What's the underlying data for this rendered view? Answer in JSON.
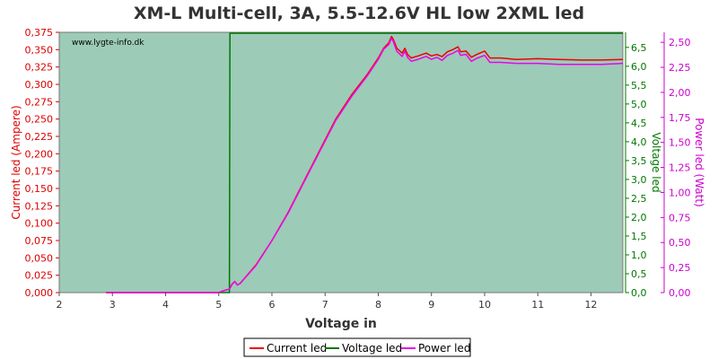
{
  "chart_data": {
    "type": "line",
    "title": "XM-L Multi-cell, 3A, 5.5-12.6V HL low 2XML led",
    "watermark": "www.lygte-info.dk",
    "xlabel": "Voltage in",
    "x_range": [
      2,
      12.6
    ],
    "x_ticks": [
      "2",
      "3",
      "4",
      "5",
      "6",
      "7",
      "8",
      "9",
      "10",
      "11",
      "12"
    ],
    "grid": false,
    "legend_position": "bottom-center",
    "plot_background": "#9ccbb8",
    "axes": {
      "current": {
        "label": "Current led (Ampere)",
        "range": [
          0,
          0.375
        ],
        "ticks": [
          "0,000",
          "0,025",
          "0,050",
          "0,075",
          "0,100",
          "0,125",
          "0,150",
          "0,175",
          "0,200",
          "0,225",
          "0,250",
          "0,275",
          "0,300",
          "0,325",
          "0,350",
          "0,375"
        ],
        "color": "#dd0000"
      },
      "voltage": {
        "label": "Voltage led",
        "range": [
          0,
          6.9
        ],
        "ticks": [
          "0,0",
          "0,5",
          "1,0",
          "1,5",
          "2,0",
          "2,5",
          "3,0",
          "3,5",
          "4,0",
          "4,5",
          "5,0",
          "5,5",
          "6,0",
          "6,5"
        ],
        "color": "#007700"
      },
      "power": {
        "label": "Power led (Watt)",
        "range": [
          0,
          2.6
        ],
        "ticks": [
          "0,00",
          "0,25",
          "0,50",
          "0,75",
          "1,00",
          "1,25",
          "1,50",
          "1,75",
          "2,00",
          "2,25",
          "2,50"
        ],
        "color": "#cc00cc"
      }
    },
    "series": [
      {
        "name": "Current led",
        "axis": "current",
        "color": "#ee0000",
        "points": [
          [
            2.88,
            0
          ],
          [
            4.5,
            0
          ],
          [
            5.0,
            0
          ],
          [
            5.1,
            0.003
          ],
          [
            5.2,
            0.005
          ],
          [
            5.25,
            0.012
          ],
          [
            5.3,
            0.016
          ],
          [
            5.35,
            0.011
          ],
          [
            5.4,
            0.013
          ],
          [
            5.5,
            0.022
          ],
          [
            5.7,
            0.04
          ],
          [
            6.0,
            0.075
          ],
          [
            6.3,
            0.115
          ],
          [
            6.6,
            0.16
          ],
          [
            6.9,
            0.205
          ],
          [
            7.2,
            0.25
          ],
          [
            7.5,
            0.285
          ],
          [
            7.8,
            0.315
          ],
          [
            8.0,
            0.338
          ],
          [
            8.1,
            0.352
          ],
          [
            8.2,
            0.36
          ],
          [
            8.25,
            0.369
          ],
          [
            8.28,
            0.365
          ],
          [
            8.35,
            0.352
          ],
          [
            8.45,
            0.345
          ],
          [
            8.5,
            0.352
          ],
          [
            8.55,
            0.343
          ],
          [
            8.62,
            0.338
          ],
          [
            8.75,
            0.341
          ],
          [
            8.9,
            0.345
          ],
          [
            9.0,
            0.341
          ],
          [
            9.1,
            0.343
          ],
          [
            9.2,
            0.34
          ],
          [
            9.3,
            0.347
          ],
          [
            9.4,
            0.35
          ],
          [
            9.5,
            0.354
          ],
          [
            9.55,
            0.347
          ],
          [
            9.65,
            0.348
          ],
          [
            9.75,
            0.339
          ],
          [
            9.85,
            0.343
          ],
          [
            10.0,
            0.348
          ],
          [
            10.1,
            0.338
          ],
          [
            10.3,
            0.338
          ],
          [
            10.6,
            0.336
          ],
          [
            11.0,
            0.337
          ],
          [
            11.4,
            0.336
          ],
          [
            11.8,
            0.335
          ],
          [
            12.2,
            0.335
          ],
          [
            12.6,
            0.336
          ]
        ]
      },
      {
        "name": "Voltage led",
        "axis": "voltage",
        "color": "#007700",
        "points": [
          [
            2.88,
            0
          ],
          [
            5.2,
            0
          ],
          [
            5.21,
            6.9
          ],
          [
            12.6,
            6.9
          ]
        ]
      },
      {
        "name": "Power led",
        "axis": "power",
        "color": "#ee00ee",
        "points": [
          [
            2.88,
            0
          ],
          [
            4.5,
            0
          ],
          [
            5.0,
            0
          ],
          [
            5.1,
            0.02
          ],
          [
            5.2,
            0.035
          ],
          [
            5.25,
            0.08
          ],
          [
            5.3,
            0.11
          ],
          [
            5.35,
            0.075
          ],
          [
            5.4,
            0.09
          ],
          [
            5.5,
            0.15
          ],
          [
            5.7,
            0.27
          ],
          [
            6.0,
            0.52
          ],
          [
            6.3,
            0.79
          ],
          [
            6.6,
            1.1
          ],
          [
            6.9,
            1.41
          ],
          [
            7.2,
            1.72
          ],
          [
            7.5,
            1.96
          ],
          [
            7.8,
            2.17
          ],
          [
            8.0,
            2.33
          ],
          [
            8.1,
            2.43
          ],
          [
            8.2,
            2.48
          ],
          [
            8.25,
            2.54
          ],
          [
            8.28,
            2.51
          ],
          [
            8.35,
            2.41
          ],
          [
            8.45,
            2.36
          ],
          [
            8.5,
            2.41
          ],
          [
            8.55,
            2.35
          ],
          [
            8.62,
            2.31
          ],
          [
            8.75,
            2.33
          ],
          [
            8.9,
            2.36
          ],
          [
            9.0,
            2.33
          ],
          [
            9.1,
            2.35
          ],
          [
            9.2,
            2.32
          ],
          [
            9.3,
            2.37
          ],
          [
            9.4,
            2.39
          ],
          [
            9.5,
            2.42
          ],
          [
            9.55,
            2.37
          ],
          [
            9.65,
            2.38
          ],
          [
            9.75,
            2.31
          ],
          [
            9.85,
            2.34
          ],
          [
            10.0,
            2.37
          ],
          [
            10.1,
            2.3
          ],
          [
            10.3,
            2.3
          ],
          [
            10.6,
            2.29
          ],
          [
            11.0,
            2.29
          ],
          [
            11.4,
            2.28
          ],
          [
            11.8,
            2.28
          ],
          [
            12.2,
            2.28
          ],
          [
            12.6,
            2.29
          ]
        ]
      }
    ],
    "legend": [
      "Current led",
      "Voltage led",
      "Power led"
    ]
  }
}
